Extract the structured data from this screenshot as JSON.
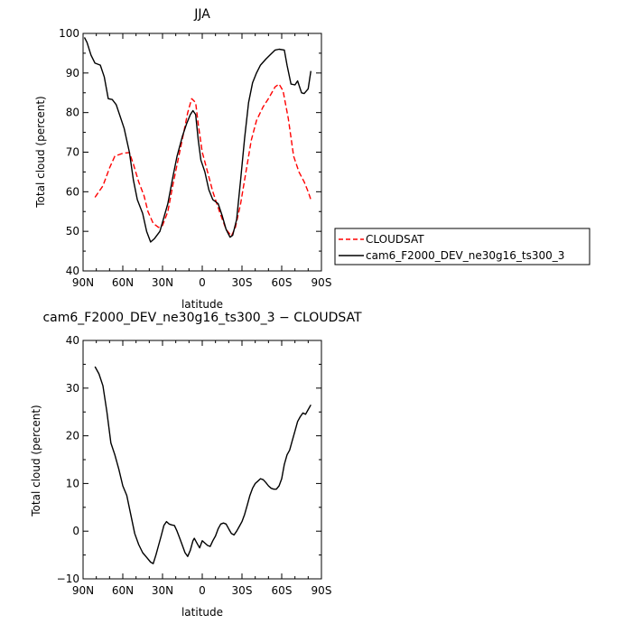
{
  "chart_data": [
    {
      "type": "line",
      "title": "JJA",
      "xlabel": "latitude",
      "ylabel": "Total cloud (percent)",
      "xlim": [
        90,
        -90
      ],
      "ylim": [
        40,
        100
      ],
      "x_ticks": [
        90,
        60,
        30,
        0,
        -30,
        -60,
        -90
      ],
      "x_tick_labels": [
        "90N",
        "60N",
        "30N",
        "0",
        "30S",
        "60S",
        "90S"
      ],
      "y_ticks": [
        40,
        50,
        60,
        70,
        80,
        90,
        100
      ],
      "y_minor_step": 5,
      "grid": false,
      "legend_position": "right",
      "series": [
        {
          "name": "CLOUDSAT",
          "color": "#ff0000",
          "dash": "dashed",
          "points": [
            [
              81,
              58.6
            ],
            [
              75,
              61.5
            ],
            [
              70,
              66
            ],
            [
              66,
              69
            ],
            [
              60,
              69.7
            ],
            [
              55,
              69.9
            ],
            [
              52,
              67
            ],
            [
              48,
              62.5
            ],
            [
              44,
              59
            ],
            [
              41,
              55
            ],
            [
              37,
              52
            ],
            [
              33,
              51
            ],
            [
              30,
              51.5
            ],
            [
              26,
              55
            ],
            [
              22,
              62
            ],
            [
              18,
              68.5
            ],
            [
              14,
              75
            ],
            [
              11,
              80
            ],
            [
              8,
              83.5
            ],
            [
              5,
              82.5
            ],
            [
              3,
              77
            ],
            [
              0,
              70
            ],
            [
              -4,
              65
            ],
            [
              -8,
              60
            ],
            [
              -13,
              55
            ],
            [
              -18,
              50.5
            ],
            [
              -22,
              48.8
            ],
            [
              -25,
              51
            ],
            [
              -29,
              57
            ],
            [
              -33,
              65
            ],
            [
              -37,
              73
            ],
            [
              -41,
              78
            ],
            [
              -46,
              81.5
            ],
            [
              -50,
              83.5
            ],
            [
              -55,
              86.5
            ],
            [
              -58,
              87.2
            ],
            [
              -61,
              85.5
            ],
            [
              -65,
              78.5
            ],
            [
              -69,
              69
            ],
            [
              -73,
              65
            ],
            [
              -77,
              62.5
            ],
            [
              -80,
              60
            ],
            [
              -82,
              58
            ]
          ]
        },
        {
          "name": "cam6_F2000_DEV_ne30g16_ts300_3",
          "color": "#000000",
          "dash": "solid",
          "points": [
            [
              89,
              99
            ],
            [
              87,
              97.7
            ],
            [
              84,
              94.5
            ],
            [
              81,
              92.5
            ],
            [
              77,
              92
            ],
            [
              74,
              89
            ],
            [
              71,
              83.5
            ],
            [
              68,
              83.3
            ],
            [
              65,
              82
            ],
            [
              62,
              79
            ],
            [
              59,
              76
            ],
            [
              55,
              70
            ],
            [
              52,
              63
            ],
            [
              49,
              58
            ],
            [
              45,
              54.5
            ],
            [
              42,
              50
            ],
            [
              39,
              47.3
            ],
            [
              36,
              48.2
            ],
            [
              32,
              50
            ],
            [
              29,
              53.5
            ],
            [
              26,
              57
            ],
            [
              22,
              64
            ],
            [
              19,
              69
            ],
            [
              15,
              74
            ],
            [
              12,
              77
            ],
            [
              9,
              79.5
            ],
            [
              7,
              80.5
            ],
            [
              5,
              79.5
            ],
            [
              3,
              73
            ],
            [
              1,
              68
            ],
            [
              -2,
              65
            ],
            [
              -5,
              60.5
            ],
            [
              -8,
              58
            ],
            [
              -12,
              57
            ],
            [
              -15,
              54
            ],
            [
              -18,
              50.5
            ],
            [
              -21,
              48.5
            ],
            [
              -23,
              49
            ],
            [
              -26,
              53
            ],
            [
              -29,
              63
            ],
            [
              -32,
              73.5
            ],
            [
              -35,
              82.5
            ],
            [
              -38,
              87.5
            ],
            [
              -41,
              90
            ],
            [
              -44,
              92
            ],
            [
              -48,
              93.5
            ],
            [
              -51,
              94.5
            ],
            [
              -55,
              95.8
            ],
            [
              -58,
              96
            ],
            [
              -62,
              95.8
            ],
            [
              -64,
              92
            ],
            [
              -67,
              87.2
            ],
            [
              -70,
              87
            ],
            [
              -72,
              88
            ],
            [
              -75,
              85
            ],
            [
              -77,
              84.8
            ],
            [
              -80,
              86
            ],
            [
              -82,
              90.5
            ]
          ]
        }
      ]
    },
    {
      "type": "line",
      "title": "cam6_F2000_DEV_ne30g16_ts300_3 − CLOUDSAT",
      "xlabel": "latitude",
      "ylabel": "Total cloud (percent)",
      "xlim": [
        90,
        -90
      ],
      "ylim": [
        -10,
        40
      ],
      "x_ticks": [
        90,
        60,
        30,
        0,
        -30,
        -60,
        -90
      ],
      "x_tick_labels": [
        "90N",
        "60N",
        "30N",
        "0",
        "30S",
        "60S",
        "90S"
      ],
      "y_ticks": [
        -10,
        0,
        10,
        20,
        30,
        40
      ],
      "y_minor_step": 5,
      "grid": false,
      "series": [
        {
          "color": "#000000",
          "dash": "solid",
          "points": [
            [
              81,
              34.5
            ],
            [
              78,
              33
            ],
            [
              75,
              30.5
            ],
            [
              72,
              25
            ],
            [
              69,
              18.5
            ],
            [
              66,
              16
            ],
            [
              63,
              13
            ],
            [
              60,
              9.5
            ],
            [
              57,
              7.5
            ],
            [
              54,
              3.5
            ],
            [
              51,
              -0.5
            ],
            [
              48,
              -2.8
            ],
            [
              45,
              -4.5
            ],
            [
              42,
              -5.5
            ],
            [
              39,
              -6.5
            ],
            [
              37,
              -6.8
            ],
            [
              35,
              -5
            ],
            [
              33,
              -3
            ],
            [
              31,
              -1
            ],
            [
              29,
              1.2
            ],
            [
              27,
              2
            ],
            [
              25,
              1.5
            ],
            [
              23,
              1.3
            ],
            [
              21,
              1.2
            ],
            [
              19,
              0
            ],
            [
              17,
              -1.5
            ],
            [
              15,
              -3
            ],
            [
              13,
              -4.5
            ],
            [
              11,
              -5.3
            ],
            [
              9,
              -4
            ],
            [
              7,
              -2
            ],
            [
              6,
              -1.5
            ],
            [
              4,
              -2.5
            ],
            [
              2,
              -3.5
            ],
            [
              0,
              -2
            ],
            [
              -2,
              -2.5
            ],
            [
              -4,
              -3
            ],
            [
              -6,
              -3.2
            ],
            [
              -8,
              -2
            ],
            [
              -10,
              -1
            ],
            [
              -12,
              0.5
            ],
            [
              -14,
              1.5
            ],
            [
              -16,
              1.7
            ],
            [
              -18,
              1.5
            ],
            [
              -20,
              0.5
            ],
            [
              -22,
              -0.5
            ],
            [
              -24,
              -0.8
            ],
            [
              -26,
              0
            ],
            [
              -28,
              1
            ],
            [
              -30,
              2
            ],
            [
              -32,
              3.5
            ],
            [
              -34,
              5.5
            ],
            [
              -36,
              7.5
            ],
            [
              -38,
              9
            ],
            [
              -40,
              10
            ],
            [
              -42,
              10.5
            ],
            [
              -44,
              11
            ],
            [
              -46,
              10.8
            ],
            [
              -48,
              10.2
            ],
            [
              -50,
              9.5
            ],
            [
              -52,
              9
            ],
            [
              -54,
              8.8
            ],
            [
              -56,
              8.8
            ],
            [
              -58,
              9.5
            ],
            [
              -60,
              11
            ],
            [
              -62,
              14
            ],
            [
              -64,
              16
            ],
            [
              -66,
              17
            ],
            [
              -68,
              19
            ],
            [
              -70,
              21
            ],
            [
              -72,
              23
            ],
            [
              -74,
              24
            ],
            [
              -76,
              24.8
            ],
            [
              -78,
              24.5
            ],
            [
              -80,
              25.5
            ],
            [
              -82,
              26.5
            ]
          ]
        }
      ]
    }
  ]
}
